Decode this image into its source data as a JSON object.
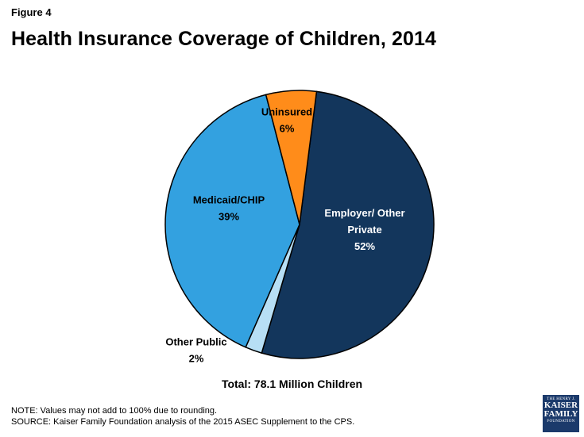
{
  "figure_label": "Figure 4",
  "colors": {
    "employer": "#13365c",
    "other_public": "#b7dff5",
    "medicaid": "#33a1e0",
    "uninsured": "#ff8c1a"
  },
  "chart_data": {
    "type": "pie",
    "title": "Health Insurance Coverage of Children, 2014",
    "slices": [
      {
        "label": "Employer/ Other Private",
        "lines": [
          "Employer/ Other",
          "Private"
        ],
        "value": 52,
        "display": "52%",
        "color": "#13365c",
        "label_color": "#ffffff"
      },
      {
        "label": "Other Public",
        "lines": [
          "Other Public"
        ],
        "value": 2,
        "display": "2%",
        "color": "#b7dff5",
        "label_color": "#000000"
      },
      {
        "label": "Medicaid/CHIP",
        "lines": [
          "Medicaid/CHIP"
        ],
        "value": 39,
        "display": "39%",
        "color": "#33a1e0",
        "label_color": "#000000"
      },
      {
        "label": "Uninsured",
        "lines": [
          "Uninsured"
        ],
        "value": 6,
        "display": "6%",
        "color": "#ff8c1a",
        "label_color": "#000000"
      }
    ],
    "total_label": "Total: 78.1 Million Children"
  },
  "notes": {
    "note": "NOTE: Values may not add to 100% due to rounding.",
    "source": "SOURCE: Kaiser Family Foundation analysis of the 2015 ASEC Supplement to the CPS."
  },
  "logo": {
    "line1": "THE HENRY J.",
    "line2": "KAISER",
    "line3": "FAMILY",
    "line4": "FOUNDATION"
  }
}
